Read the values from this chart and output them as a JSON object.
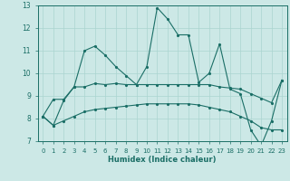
{
  "xlabel": "Humidex (Indice chaleur)",
  "x": [
    0,
    1,
    2,
    3,
    4,
    5,
    6,
    7,
    8,
    9,
    10,
    11,
    12,
    13,
    14,
    15,
    16,
    17,
    18,
    19,
    20,
    21,
    22,
    23
  ],
  "line1": [
    8.1,
    7.7,
    8.8,
    9.4,
    11.0,
    11.2,
    10.8,
    10.3,
    9.9,
    9.5,
    10.3,
    12.9,
    12.4,
    11.7,
    11.7,
    9.6,
    10.0,
    11.3,
    9.3,
    9.1,
    7.5,
    6.8,
    7.9,
    9.7
  ],
  "line2": [
    8.1,
    8.85,
    8.85,
    9.4,
    9.4,
    9.55,
    9.5,
    9.55,
    9.5,
    9.5,
    9.5,
    9.5,
    9.5,
    9.5,
    9.5,
    9.5,
    9.5,
    9.4,
    9.35,
    9.3,
    9.1,
    8.9,
    8.7,
    9.7
  ],
  "line3": [
    8.1,
    7.7,
    7.9,
    8.1,
    8.3,
    8.4,
    8.45,
    8.5,
    8.55,
    8.6,
    8.65,
    8.65,
    8.65,
    8.65,
    8.65,
    8.6,
    8.5,
    8.4,
    8.3,
    8.1,
    7.9,
    7.6,
    7.5,
    7.5
  ],
  "bg_color": "#cce8e6",
  "grid_color": "#aad4d0",
  "line_color": "#1a6e66",
  "ylim": [
    7,
    13
  ],
  "yticks": [
    7,
    8,
    9,
    10,
    11,
    12,
    13
  ],
  "xticks": [
    0,
    1,
    2,
    3,
    4,
    5,
    6,
    7,
    8,
    9,
    10,
    11,
    12,
    13,
    14,
    15,
    16,
    17,
    18,
    19,
    20,
    21,
    22,
    23
  ]
}
